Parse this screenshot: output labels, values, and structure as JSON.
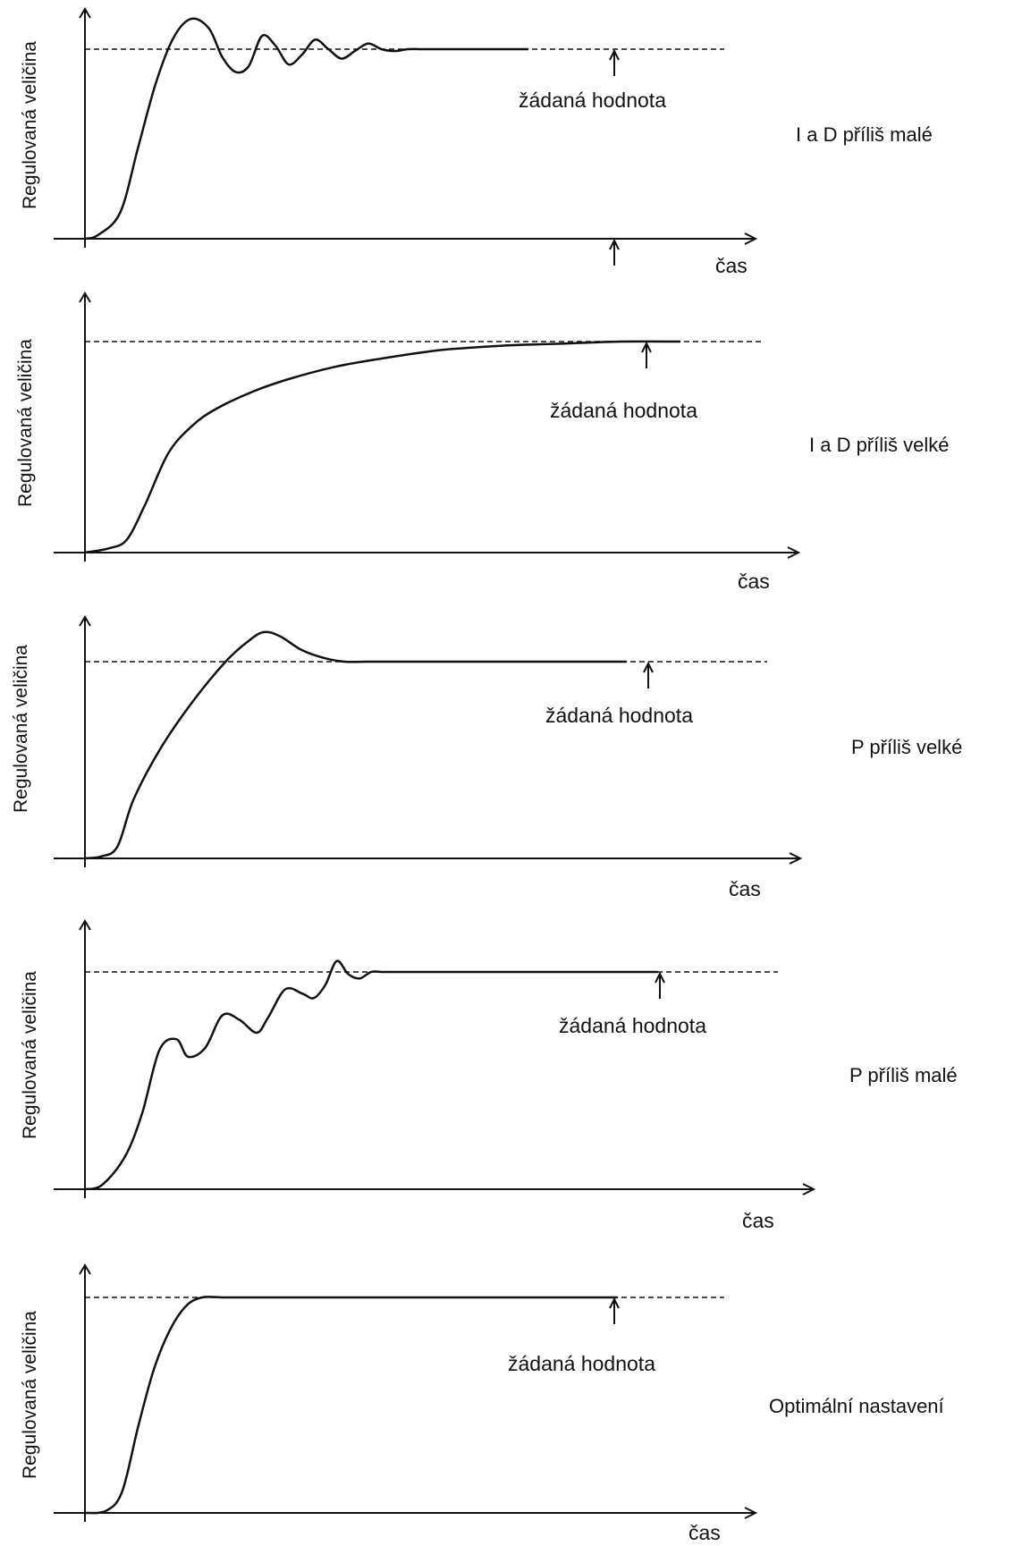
{
  "chart_data": [
    {
      "type": "line",
      "title": "I a D příliš malé",
      "ylabel": "Regulovaná veličina",
      "xlabel": "čas",
      "setpoint_label": "žádaná hodnota",
      "setpoint": 1.0,
      "grid": false,
      "series": [
        {
          "x": [
            0,
            0.03,
            0.08,
            0.12,
            0.16,
            0.2,
            0.24,
            0.28,
            0.31,
            0.34,
            0.37,
            0.4,
            0.43,
            0.46,
            0.49,
            0.52,
            0.55,
            0.58,
            0.61,
            0.64,
            0.67,
            0.7,
            0.73,
            0.76,
            0.8,
            0.85,
            1.0
          ],
          "y": [
            0,
            0.02,
            0.14,
            0.48,
            0.82,
            1.06,
            1.16,
            1.11,
            0.96,
            0.88,
            0.91,
            1.07,
            1.02,
            0.92,
            0.97,
            1.05,
            1.0,
            0.95,
            0.99,
            1.03,
            1.0,
            0.99,
            1.0,
            1.0,
            1.0,
            1.0,
            1.0
          ]
        }
      ]
    },
    {
      "type": "line",
      "title": "I a D příliš velké",
      "ylabel": "Regulovaná veličina",
      "xlabel": "čas",
      "setpoint_label": "žádaná hodnota",
      "setpoint": 1.0,
      "grid": false,
      "series": [
        {
          "x": [
            0,
            0.04,
            0.07,
            0.1,
            0.14,
            0.18,
            0.22,
            0.28,
            0.34,
            0.42,
            0.5,
            0.6,
            0.7,
            0.8,
            0.9,
            1.0
          ],
          "y": [
            0,
            0.02,
            0.06,
            0.22,
            0.47,
            0.6,
            0.68,
            0.76,
            0.82,
            0.88,
            0.92,
            0.96,
            0.98,
            0.99,
            1.0,
            1.0
          ]
        }
      ]
    },
    {
      "type": "line",
      "title": "P příliš velké",
      "ylabel": "Regulovaná veličina",
      "xlabel": "čas",
      "setpoint_label": "žádaná hodnota",
      "setpoint": 1.0,
      "grid": false,
      "series": [
        {
          "x": [
            0,
            0.03,
            0.06,
            0.09,
            0.14,
            0.2,
            0.26,
            0.3,
            0.33,
            0.36,
            0.4,
            0.44,
            0.48,
            0.52,
            0.6,
            0.8,
            1.0
          ],
          "y": [
            0,
            0.01,
            0.06,
            0.3,
            0.56,
            0.8,
            1.0,
            1.1,
            1.15,
            1.13,
            1.06,
            1.02,
            1.0,
            1.0,
            1.0,
            1.0,
            1.0
          ]
        }
      ]
    },
    {
      "type": "line",
      "title": "P příliš malé",
      "ylabel": "Regulovaná veličina",
      "xlabel": "čas",
      "setpoint_label": "žádaná hodnota",
      "setpoint": 1.0,
      "grid": false,
      "series": [
        {
          "x": [
            0,
            0.03,
            0.07,
            0.1,
            0.13,
            0.16,
            0.18,
            0.21,
            0.24,
            0.27,
            0.3,
            0.32,
            0.35,
            0.38,
            0.4,
            0.42,
            0.44,
            0.46,
            0.48,
            0.5,
            0.52,
            0.54,
            0.6,
            0.8,
            1.0
          ],
          "y": [
            0,
            0.02,
            0.15,
            0.35,
            0.64,
            0.69,
            0.61,
            0.65,
            0.8,
            0.78,
            0.72,
            0.79,
            0.92,
            0.9,
            0.88,
            0.94,
            1.05,
            0.99,
            0.97,
            1.0,
            1.0,
            1.0,
            1.0,
            1.0,
            1.0
          ]
        }
      ]
    },
    {
      "type": "line",
      "title": "Optimální nastavení",
      "ylabel": "Regulovaná veličina",
      "xlabel": "čas",
      "setpoint_label": "žádaná hodnota",
      "setpoint": 1.0,
      "grid": false,
      "series": [
        {
          "x": [
            0,
            0.04,
            0.07,
            0.1,
            0.13,
            0.16,
            0.19,
            0.22,
            0.26,
            0.3,
            0.4,
            0.6,
            0.8,
            1.0
          ],
          "y": [
            0,
            0.01,
            0.1,
            0.4,
            0.67,
            0.85,
            0.96,
            1.0,
            1.0,
            1.0,
            1.0,
            1.0,
            1.0,
            1.0
          ]
        }
      ]
    }
  ]
}
